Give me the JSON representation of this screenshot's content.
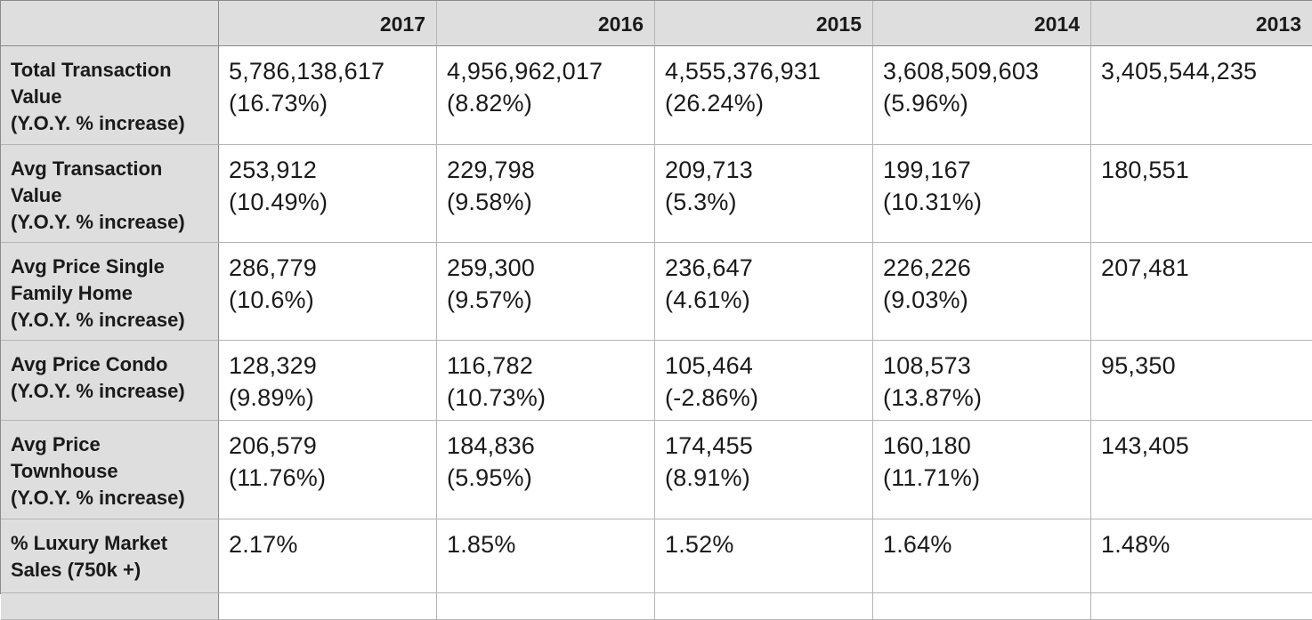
{
  "columns": [
    "2017",
    "2016",
    "2015",
    "2014",
    "2013"
  ],
  "rows": [
    {
      "label": [
        "Total Transaction",
        "Value",
        "(Y.O.Y. % increase)"
      ],
      "cells": [
        {
          "value": "5,786,138,617",
          "change": "(16.73%)"
        },
        {
          "value": "4,956,962,017",
          "change": "(8.82%)"
        },
        {
          "value": "4,555,376,931",
          "change": "(26.24%)"
        },
        {
          "value": "3,608,509,603",
          "change": "(5.96%)"
        },
        {
          "value": "3,405,544,235",
          "change": ""
        }
      ]
    },
    {
      "label": [
        "Avg Transaction",
        "Value",
        "(Y.O.Y. % increase)"
      ],
      "cells": [
        {
          "value": "253,912",
          "change": "(10.49%)"
        },
        {
          "value": "229,798",
          "change": "(9.58%)"
        },
        {
          "value": "209,713",
          "change": "(5.3%)"
        },
        {
          "value": "199,167",
          "change": "(10.31%)"
        },
        {
          "value": "180,551",
          "change": ""
        }
      ]
    },
    {
      "label": [
        "Avg Price Single",
        "Family Home",
        "(Y.O.Y. % increase)"
      ],
      "cells": [
        {
          "value": "286,779",
          "change": "(10.6%)"
        },
        {
          "value": "259,300",
          "change": "(9.57%)"
        },
        {
          "value": "236,647",
          "change": "(4.61%)"
        },
        {
          "value": "226,226",
          "change": "(9.03%)"
        },
        {
          "value": "207,481",
          "change": ""
        }
      ]
    },
    {
      "label": [
        "Avg Price Condo",
        "(Y.O.Y. % increase)"
      ],
      "cells": [
        {
          "value": "128,329",
          "change": "(9.89%)"
        },
        {
          "value": "116,782",
          "change": "(10.73%)"
        },
        {
          "value": "105,464",
          "change": "(-2.86%)"
        },
        {
          "value": "108,573",
          "change": "(13.87%)"
        },
        {
          "value": "95,350",
          "change": ""
        }
      ]
    },
    {
      "label": [
        "Avg Price",
        "Townhouse",
        "(Y.O.Y. % increase)"
      ],
      "cells": [
        {
          "value": "206,579",
          "change": "(11.76%)"
        },
        {
          "value": "184,836",
          "change": "(5.95%)"
        },
        {
          "value": "174,455",
          "change": "(8.91%)"
        },
        {
          "value": "160,180",
          "change": "(11.71%)"
        },
        {
          "value": "143,405",
          "change": ""
        }
      ]
    },
    {
      "label": [
        "% Luxury Market",
        "Sales (750k +)"
      ],
      "cells": [
        {
          "value": "2.17%",
          "change": ""
        },
        {
          "value": "1.85%",
          "change": ""
        },
        {
          "value": "1.52%",
          "change": ""
        },
        {
          "value": "1.64%",
          "change": ""
        },
        {
          "value": "1.48%",
          "change": ""
        }
      ]
    }
  ],
  "colors": {
    "header_bg": "#dedede",
    "cell_bg": "#ffffff",
    "grid_line": "#b5b5b5",
    "header_line": "#8a8a8a"
  }
}
